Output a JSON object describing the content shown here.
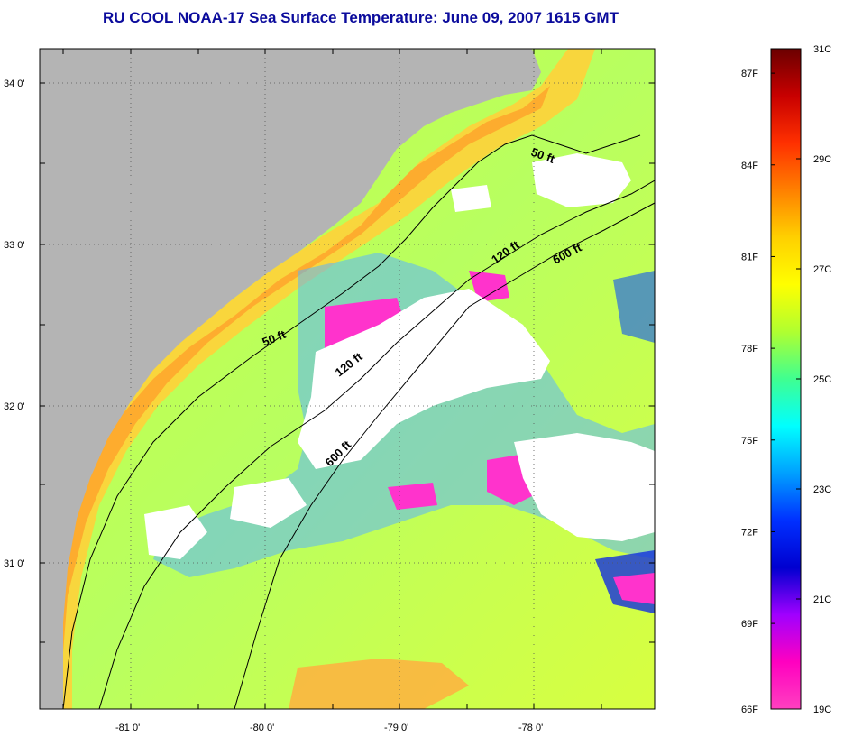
{
  "title": "RU COOL  NOAA-17  Sea Surface Temperature:  June 09, 2007 1615 GMT",
  "map": {
    "lon_range": [
      -81.6,
      -77.2
    ],
    "lat_range": [
      30.2,
      34.2
    ],
    "lon_ticks": [
      "-81 0'",
      "-80 0'",
      "-79 0'",
      "-78 0'"
    ],
    "lat_ticks": [
      "34 0'",
      "33 0'",
      "32 0'",
      "31 0'"
    ],
    "gridlines": "dotted",
    "land_color": "#b4b4b4",
    "cloud_color": "#ffffff",
    "contours": [
      {
        "label": "50 ft",
        "depth_ft": 50
      },
      {
        "label": "50 ft",
        "depth_ft": 50
      },
      {
        "label": "120 ft",
        "depth_ft": 120
      },
      {
        "label": "120 ft",
        "depth_ft": 120
      },
      {
        "label": "600 ft",
        "depth_ft": 600
      },
      {
        "label": "600 ft",
        "depth_ft": 600
      }
    ]
  },
  "colorbar": {
    "celsius_labels": [
      "31C",
      "29C",
      "27C",
      "25C",
      "23C",
      "21C",
      "19C"
    ],
    "fahrenheit_labels": [
      "87F",
      "84F",
      "81F",
      "78F",
      "75F",
      "72F",
      "69F",
      "66F"
    ],
    "colors": [
      "#6b0000",
      "#c80000",
      "#ff3000",
      "#ff8000",
      "#ffd000",
      "#ffff00",
      "#b0ff30",
      "#40ff90",
      "#00ffff",
      "#00a0ff",
      "#0030ff",
      "#0000d0",
      "#a000ff",
      "#ff00c0",
      "#ff40c0"
    ]
  }
}
